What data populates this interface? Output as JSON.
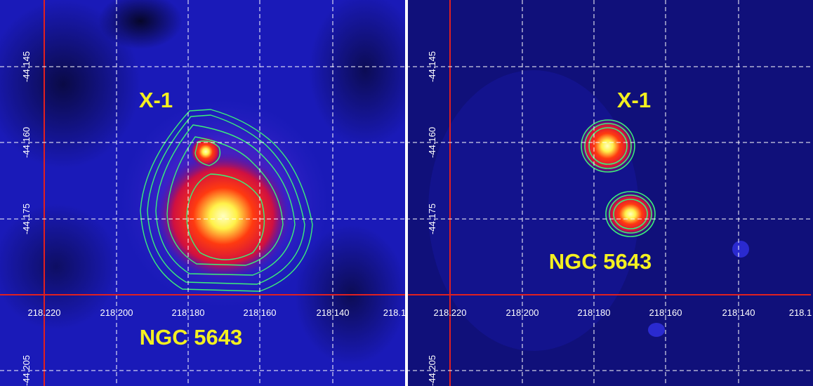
{
  "panels": [
    {
      "labels": [
        "X-1",
        "NGC 5643"
      ],
      "x_ticks": [
        "218.220",
        "218.200",
        "218.180",
        "218.160",
        "218.140",
        "218.1"
      ],
      "y_ticks": [
        "-44.145",
        "-44.160",
        "-44.175",
        "-44.205"
      ]
    },
    {
      "labels": [
        "X-1",
        "NGC 5643"
      ],
      "x_ticks": [
        "218.220",
        "218.200",
        "218.180",
        "218.160",
        "218.140",
        "218.1"
      ],
      "y_ticks": [
        "-44.145",
        "-44.160",
        "-44.175",
        "-44.205"
      ]
    }
  ]
}
